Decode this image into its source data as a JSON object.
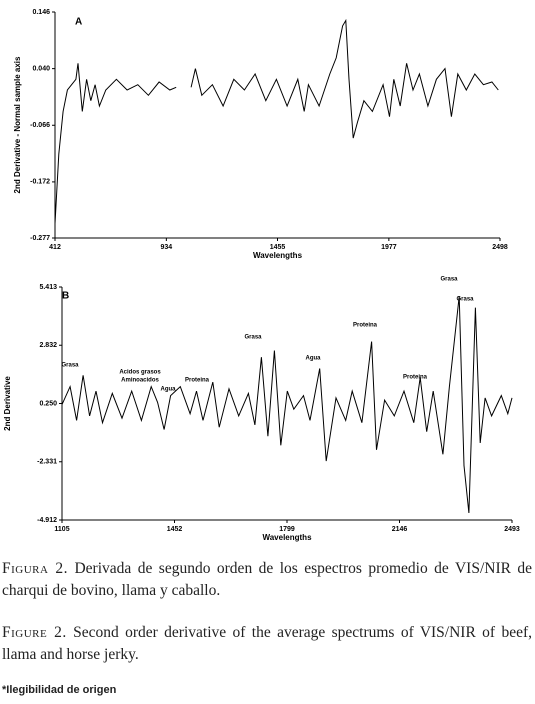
{
  "chart_data": [
    {
      "type": "line",
      "panel": "A",
      "ylabel": "2nd Derivative - Normal sample axis",
      "xlabel": "Wavelengths",
      "x": [
        412,
        430,
        450,
        470,
        490,
        510,
        520,
        540,
        560,
        580,
        600,
        620,
        650,
        700,
        750,
        800,
        850,
        900,
        950,
        980,
        1000,
        1050,
        1070,
        1100,
        1150,
        1200,
        1250,
        1300,
        1350,
        1400,
        1450,
        1500,
        1550,
        1580,
        1600,
        1650,
        1700,
        1730,
        1760,
        1775,
        1790,
        1810,
        1830,
        1860,
        1900,
        1950,
        1980,
        2000,
        2030,
        2060,
        2090,
        2120,
        2160,
        2200,
        2240,
        2270,
        2300,
        2340,
        2380,
        2420,
        2460,
        2490
      ],
      "series": [
        {
          "color": "#000000",
          "values": [
            -0.25,
            -0.12,
            -0.04,
            0.0,
            0.01,
            0.02,
            0.05,
            -0.04,
            0.02,
            -0.02,
            0.01,
            -0.03,
            0.0,
            0.02,
            0.0,
            0.01,
            -0.01,
            0.015,
            0.0,
            0.005,
            null,
            0.005,
            0.04,
            -0.01,
            0.01,
            -0.03,
            0.02,
            0.0,
            0.03,
            -0.02,
            0.02,
            -0.03,
            0.02,
            -0.04,
            0.01,
            -0.03,
            0.03,
            0.06,
            0.12,
            0.13,
            0.02,
            -0.09,
            -0.06,
            -0.02,
            -0.04,
            0.01,
            -0.05,
            0.02,
            -0.03,
            0.05,
            0.0,
            0.03,
            -0.03,
            0.02,
            0.04,
            -0.05,
            0.03,
            0.0,
            0.03,
            0.01,
            0.015,
            0.0
          ]
        }
      ],
      "xlim": [
        412,
        2498
      ],
      "ylim": [
        -0.277,
        0.146
      ],
      "xticks": [
        412,
        934,
        1455,
        1977,
        2498
      ],
      "yticks": [
        -0.277,
        -0.172,
        -0.066,
        {
          "value": 0.04,
          "label": "0.040"
        },
        0.146
      ]
    },
    {
      "type": "line",
      "panel": "B",
      "ylabel": "2nd Derivative",
      "xlabel": "Wavelengths",
      "annotations": [
        "Grasa",
        "Acidos grasos",
        "Aminoacidos",
        "Agua",
        "Proteina",
        "Grasa",
        "Agua",
        "Proteina",
        "Proteina",
        "Grasa",
        "Grasa"
      ],
      "x": [
        1105,
        1130,
        1150,
        1170,
        1190,
        1210,
        1230,
        1260,
        1290,
        1320,
        1350,
        1380,
        1400,
        1420,
        1440,
        1470,
        1500,
        1520,
        1540,
        1570,
        1590,
        1620,
        1650,
        1680,
        1700,
        1720,
        1740,
        1760,
        1780,
        1800,
        1820,
        1850,
        1870,
        1900,
        1920,
        1950,
        1980,
        2000,
        2030,
        2060,
        2075,
        2100,
        2130,
        2160,
        2190,
        2210,
        2230,
        2250,
        2280,
        2300,
        2330,
        2345,
        2360,
        2380,
        2395,
        2410,
        2430,
        2460,
        2480,
        2493
      ],
      "series": [
        {
          "color": "#000000",
          "values": [
            0.2,
            1.0,
            -0.5,
            1.5,
            -0.3,
            0.8,
            -0.6,
            0.7,
            -0.4,
            0.8,
            -0.5,
            1.0,
            0.3,
            -0.9,
            0.6,
            1.0,
            -0.2,
            0.8,
            -0.5,
            1.2,
            -0.8,
            0.9,
            -0.3,
            0.7,
            -0.7,
            2.3,
            -1.2,
            2.6,
            -1.6,
            0.8,
            0.0,
            0.6,
            -0.5,
            1.8,
            -2.3,
            0.5,
            -0.5,
            0.8,
            -0.6,
            3.0,
            -1.8,
            0.4,
            -0.3,
            0.8,
            -0.6,
            1.4,
            -1.0,
            0.8,
            -2.0,
            1.0,
            5.0,
            -2.5,
            -4.6,
            4.5,
            -1.5,
            0.5,
            -0.3,
            0.6,
            -0.2,
            0.5
          ]
        }
      ],
      "xlim": [
        1105,
        2493
      ],
      "ylim": [
        -4.912,
        5.413
      ],
      "xticks": [
        1105,
        1452,
        1799,
        2146,
        2493
      ],
      "yticks": [
        -4.912,
        -2.331,
        {
          "value": 0.25,
          "label": "0.250"
        },
        2.832,
        5.413
      ]
    }
  ],
  "captions": [
    {
      "label": "Figura 2.",
      "text": "Derivada de segundo orden de los espectros promedio de VIS/NIR de charqui de bovino, llama y caballo."
    },
    {
      "label": "Figure 2.",
      "text": "Second order derivative of the average spectrums of VIS/NIR of beef, llama and horse jerky."
    }
  ],
  "footnote": "*Ilegibilidad de origen"
}
